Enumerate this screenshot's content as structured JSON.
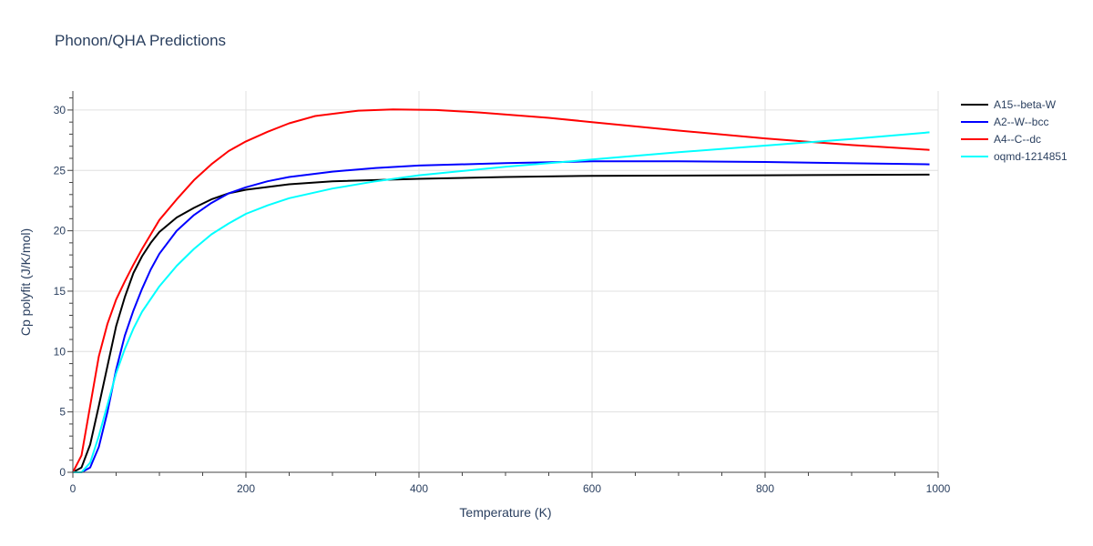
{
  "chart_data": {
    "type": "line",
    "title": "Phonon/QHA Predictions",
    "xlabel": "Temperature (K)",
    "ylabel": "Cp polyfit (J/K/mol)",
    "xlim": [
      0,
      1000
    ],
    "ylim": [
      0,
      31.5
    ],
    "xticks": [
      0,
      200,
      400,
      600,
      800,
      1000
    ],
    "yticks": [
      0,
      5,
      10,
      15,
      20,
      25,
      30
    ],
    "grid": true,
    "legend_position": "top-right",
    "series": [
      {
        "name": "A15--beta-W",
        "color": "#000000",
        "x": [
          0,
          10,
          20,
          30,
          40,
          50,
          60,
          70,
          80,
          90,
          100,
          120,
          140,
          160,
          180,
          200,
          250,
          300,
          400,
          500,
          600,
          800,
          990
        ],
        "y": [
          0,
          0.4,
          2.3,
          5.5,
          8.8,
          12.1,
          14.5,
          16.5,
          17.9,
          19.0,
          19.9,
          21.1,
          21.9,
          22.6,
          23.1,
          23.4,
          23.85,
          24.1,
          24.3,
          24.45,
          24.55,
          24.6,
          24.65
        ]
      },
      {
        "name": "A2--W--bcc",
        "color": "#0000ff",
        "x": [
          0,
          10,
          20,
          30,
          40,
          50,
          60,
          70,
          80,
          90,
          100,
          120,
          140,
          160,
          180,
          200,
          225,
          250,
          300,
          350,
          400,
          500,
          600,
          700,
          800,
          990
        ],
        "y": [
          0,
          0,
          0.4,
          2.1,
          5.0,
          8.5,
          11.3,
          13.4,
          15.2,
          16.8,
          18.1,
          20.0,
          21.3,
          22.3,
          23.1,
          23.6,
          24.1,
          24.45,
          24.9,
          25.2,
          25.4,
          25.6,
          25.75,
          25.75,
          25.7,
          25.5
        ]
      },
      {
        "name": "A4--C--dc",
        "color": "#ff0000",
        "x": [
          0,
          10,
          20,
          30,
          40,
          50,
          60,
          70,
          80,
          100,
          120,
          140,
          160,
          180,
          200,
          225,
          250,
          280,
          330,
          370,
          420,
          470,
          550,
          600,
          700,
          800,
          900,
          990
        ],
        "y": [
          0,
          1.4,
          5.5,
          9.6,
          12.3,
          14.3,
          15.8,
          17.2,
          18.5,
          20.9,
          22.6,
          24.2,
          25.5,
          26.6,
          27.4,
          28.2,
          28.9,
          29.5,
          29.95,
          30.05,
          30.0,
          29.8,
          29.35,
          29.0,
          28.3,
          27.65,
          27.1,
          26.7
        ]
      },
      {
        "name": "oqmd-1214851",
        "color": "#00ffff",
        "x": [
          0,
          10,
          20,
          30,
          40,
          50,
          60,
          70,
          80,
          100,
          120,
          140,
          160,
          180,
          200,
          225,
          250,
          300,
          350,
          400,
          500,
          600,
          700,
          800,
          900,
          990
        ],
        "y": [
          0,
          0,
          0.8,
          3.0,
          5.6,
          8.2,
          10.2,
          11.9,
          13.3,
          15.4,
          17.1,
          18.5,
          19.7,
          20.6,
          21.4,
          22.1,
          22.7,
          23.5,
          24.1,
          24.6,
          25.3,
          25.9,
          26.5,
          27.05,
          27.6,
          28.15
        ]
      }
    ]
  }
}
